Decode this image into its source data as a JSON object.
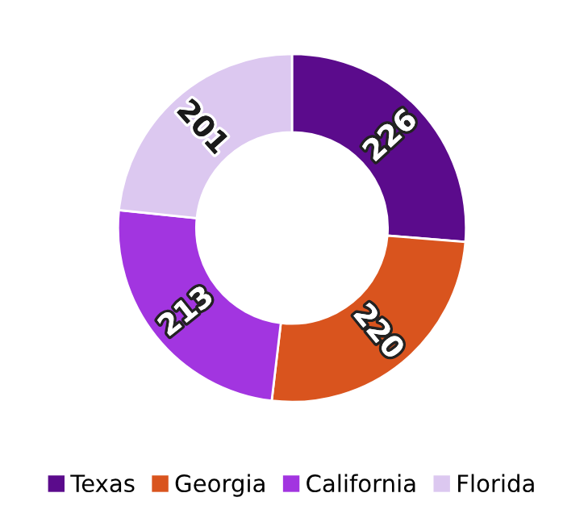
{
  "chart_data": {
    "type": "donut",
    "categories": [
      "Texas",
      "Georgia",
      "California",
      "Florida"
    ],
    "values": [
      226,
      220,
      213,
      201
    ],
    "colors": [
      "#5b0b8c",
      "#d9541e",
      "#a235e0",
      "#dcc8f0"
    ],
    "data_labels": true,
    "legend": "bottom"
  }
}
